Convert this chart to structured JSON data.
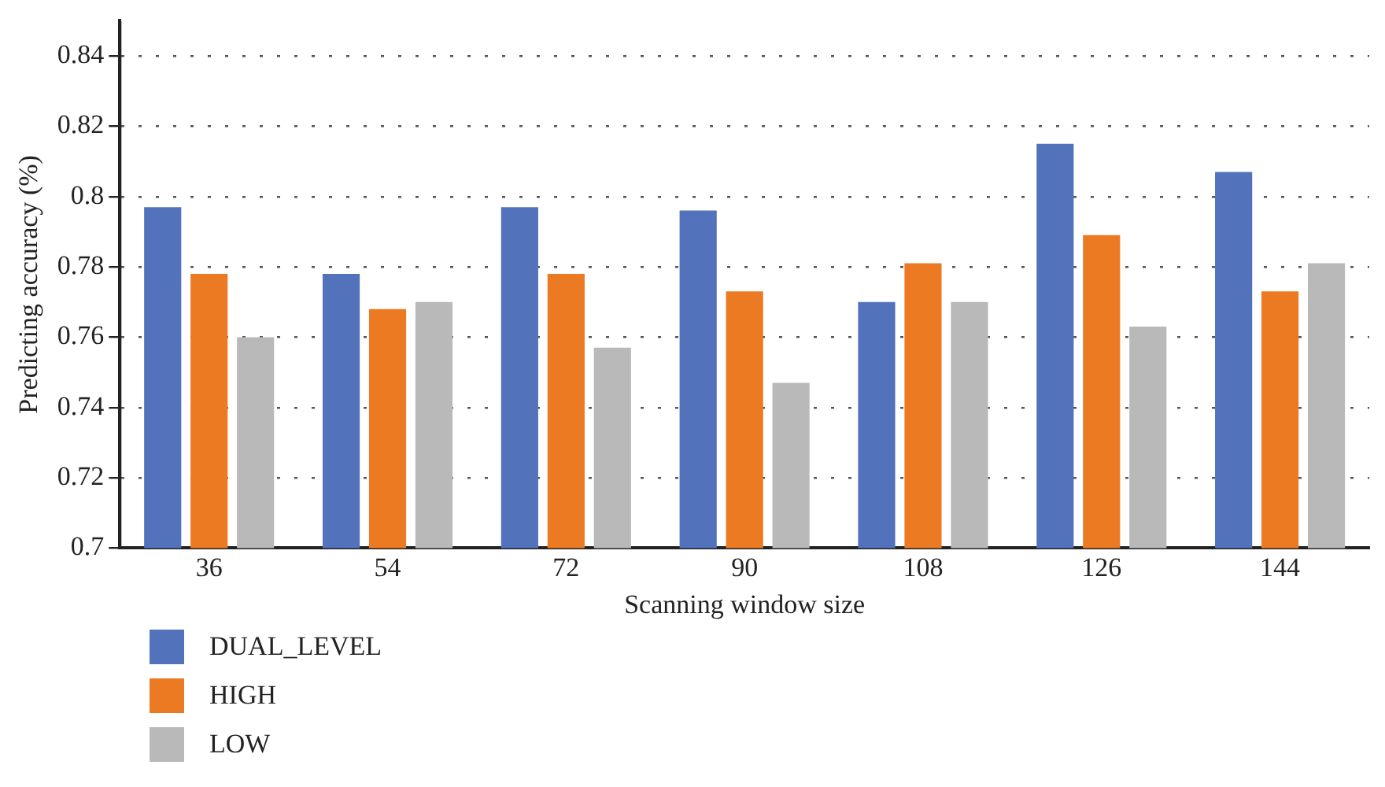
{
  "chart_data": {
    "type": "bar",
    "xlabel": "Scanning window size",
    "ylabel": "Predicting accuracy (%)",
    "categories": [
      "36",
      "54",
      "72",
      "90",
      "108",
      "126",
      "144"
    ],
    "series": [
      {
        "name": "DUAL_LEVEL",
        "color": "#5273bb",
        "values": [
          0.797,
          0.778,
          0.797,
          0.796,
          0.77,
          0.815,
          0.807
        ]
      },
      {
        "name": "HIGH",
        "color": "#ec7a23",
        "values": [
          0.778,
          0.768,
          0.778,
          0.773,
          0.781,
          0.789,
          0.773
        ]
      },
      {
        "name": "LOW",
        "color": "#b9b9b9",
        "values": [
          0.76,
          0.77,
          0.757,
          0.747,
          0.77,
          0.763,
          0.781
        ]
      }
    ],
    "ylim": [
      0.7,
      0.85
    ],
    "yticks": [
      0.7,
      0.72,
      0.74,
      0.76,
      0.78,
      0.8,
      0.82,
      0.84
    ],
    "grid": "y",
    "legend": "bottom left"
  }
}
